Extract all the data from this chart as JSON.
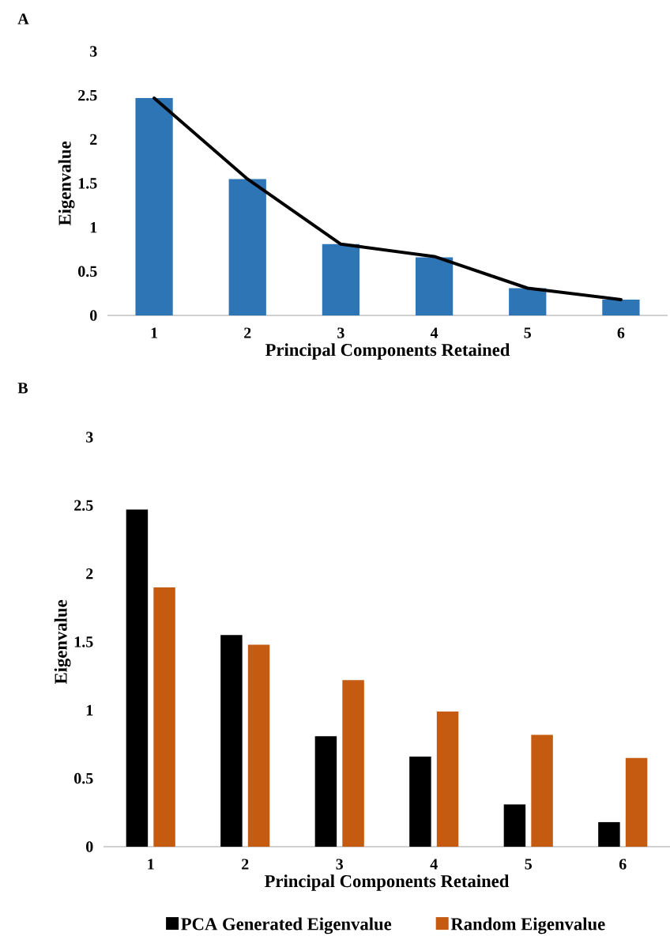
{
  "chart_data": [
    {
      "type": "bar",
      "title": "A",
      "xlabel": "Principal Components Retained",
      "ylabel": "Eigenvalue",
      "categories": [
        "1",
        "2",
        "3",
        "4",
        "5",
        "6"
      ],
      "series": [
        {
          "type": "bar",
          "color": "#2e75b6",
          "values": [
            2.47,
            1.55,
            0.81,
            0.66,
            0.31,
            0.18
          ]
        },
        {
          "type": "line",
          "color": "#000000",
          "values": [
            2.47,
            1.55,
            0.81,
            0.67,
            0.31,
            0.18
          ]
        }
      ],
      "ylim": [
        0,
        3
      ],
      "yticks": [
        0,
        0.5,
        1,
        1.5,
        2,
        2.5,
        3
      ],
      "grid": false,
      "marker": "none"
    },
    {
      "type": "bar",
      "title": "B",
      "xlabel": "Principal Components Retained",
      "ylabel": "Eigenvalue",
      "categories": [
        "1",
        "2",
        "3",
        "4",
        "5",
        "6"
      ],
      "series": [
        {
          "name": "PCA Generated Eigenvalue",
          "color": "#000000",
          "values": [
            2.47,
            1.55,
            0.81,
            0.66,
            0.31,
            0.18
          ]
        },
        {
          "name": "Random Eigenvalue",
          "color": "#c55a11",
          "values": [
            1.9,
            1.48,
            1.22,
            0.99,
            0.82,
            0.65
          ]
        }
      ],
      "ylim": [
        0,
        3
      ],
      "yticks": [
        0,
        0.5,
        1,
        1.5,
        2,
        2.5,
        3
      ],
      "grid": false,
      "legend": "bottom"
    }
  ]
}
